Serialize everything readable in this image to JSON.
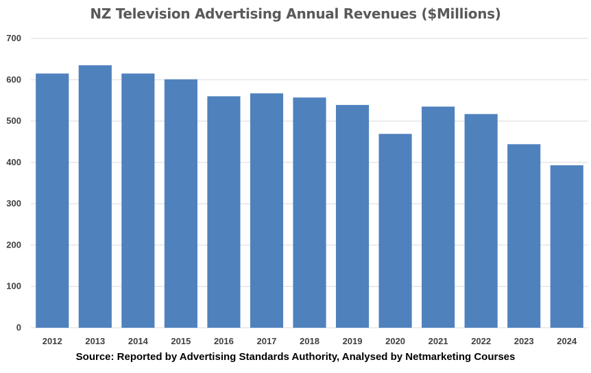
{
  "chart_data": {
    "type": "bar",
    "title": "NZ Television Advertising Annual Revenues ($Millions)",
    "source": "Source: Reported by Advertising Standards Authority, Analysed by Netmarketing Courses",
    "categories": [
      "2012",
      "2013",
      "2014",
      "2015",
      "2016",
      "2017",
      "2018",
      "2019",
      "2020",
      "2021",
      "2022",
      "2023",
      "2024"
    ],
    "values": [
      615,
      635,
      615,
      601,
      560,
      567,
      557,
      539,
      469,
      535,
      517,
      444,
      393
    ],
    "xlabel": "",
    "ylabel": "",
    "ylim": [
      0,
      700
    ],
    "yticks": [
      "0",
      "100",
      "200",
      "300",
      "400",
      "500",
      "600",
      "700"
    ],
    "grid": true,
    "legend": "none",
    "colors": {
      "bar": "#4f81bd",
      "grid": "#d9d9d9",
      "axis_text": "#404040",
      "title": "#595959"
    }
  }
}
